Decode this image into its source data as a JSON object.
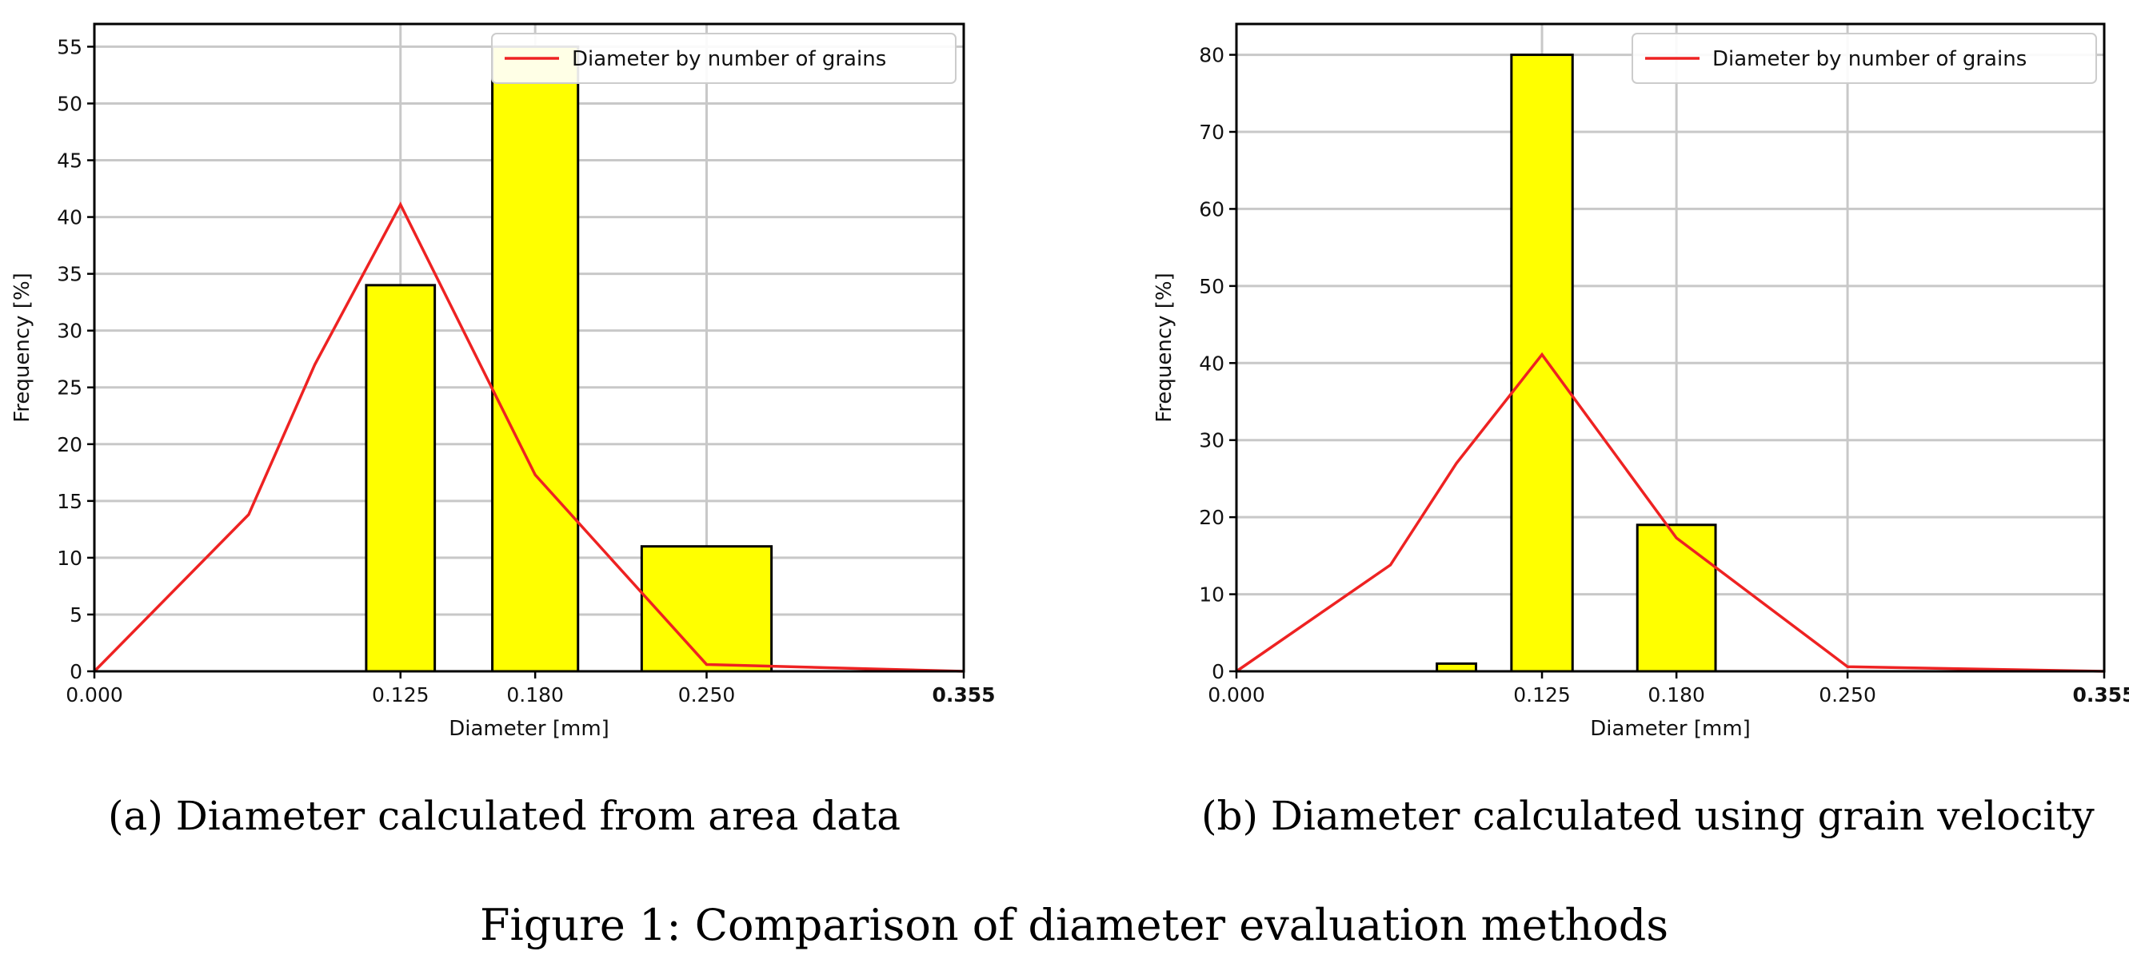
{
  "figure_caption": "Figure 1: Comparison of diameter evaluation methods",
  "panels": [
    {
      "caption": "(a) Diameter calculated from area data"
    },
    {
      "caption": "(b) Diameter calculated using grain velocity"
    }
  ],
  "colors": {
    "bar_fill": "#ffff00",
    "bar_edge": "#000000",
    "line": "#ee2222",
    "grid": "#c8c8c8"
  },
  "chart_data": [
    {
      "type": "bar",
      "title": "",
      "xlabel": "Diameter [mm]",
      "ylabel": "Frequency [%]",
      "xlim": [
        0,
        0.355
      ],
      "ylim": [
        0,
        57
      ],
      "xticks": [
        "0.000",
        "0.125",
        "0.180",
        "0.250",
        "0.355"
      ],
      "xtick_values": [
        0,
        0.125,
        0.18,
        0.25,
        0.355
      ],
      "yticks": [
        0,
        5,
        10,
        15,
        20,
        25,
        30,
        35,
        40,
        45,
        50,
        55
      ],
      "grid": true,
      "legend_position": "top-right",
      "bars": [
        {
          "x": 0.125,
          "width": 0.028,
          "value": 34
        },
        {
          "x": 0.18,
          "width": 0.035,
          "value": 55
        },
        {
          "x": 0.25,
          "width": 0.053,
          "value": 11
        }
      ],
      "series": [
        {
          "name": "Diameter by number of grains",
          "type": "line",
          "x": [
            0,
            0.063,
            0.09,
            0.125,
            0.18,
            0.25,
            0.355
          ],
          "y": [
            0,
            13.8,
            27,
            41.1,
            17.3,
            0.6,
            0
          ]
        }
      ]
    },
    {
      "type": "bar",
      "title": "",
      "xlabel": "Diameter [mm]",
      "ylabel": "Frequency [%]",
      "xlim": [
        0,
        0.355
      ],
      "ylim": [
        0,
        84
      ],
      "xticks": [
        "0.000",
        "0.125",
        "0.180",
        "0.250",
        "0.355"
      ],
      "xtick_values": [
        0,
        0.125,
        0.18,
        0.25,
        0.355
      ],
      "yticks": [
        0,
        10,
        20,
        30,
        40,
        50,
        60,
        70,
        80
      ],
      "grid": true,
      "legend_position": "top-right",
      "bars": [
        {
          "x": 0.09,
          "width": 0.016,
          "value": 1
        },
        {
          "x": 0.125,
          "width": 0.025,
          "value": 80
        },
        {
          "x": 0.18,
          "width": 0.032,
          "value": 19
        }
      ],
      "series": [
        {
          "name": "Diameter by number of grains",
          "type": "line",
          "x": [
            0,
            0.063,
            0.09,
            0.125,
            0.18,
            0.25,
            0.355
          ],
          "y": [
            0,
            13.8,
            27,
            41.1,
            17.3,
            0.6,
            0
          ]
        }
      ]
    }
  ]
}
